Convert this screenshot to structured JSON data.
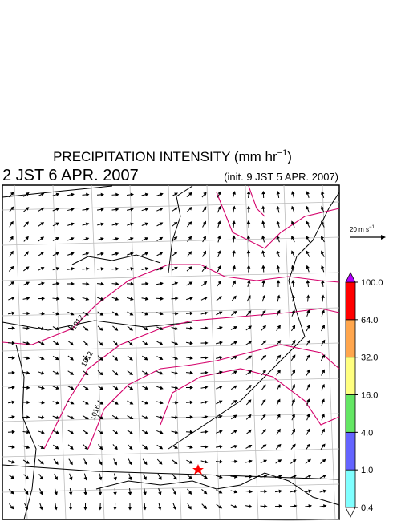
{
  "header": {
    "title": "PRECIPITATION INTENSITY (mm hr",
    "title_sup": "−1",
    "title_end": ")",
    "valid_time": "2 JST 6 APR. 2007",
    "init_time": "(init. 9 JST 5 APR. 2007)"
  },
  "wind_scale": {
    "label": "20 m s",
    "label_sup": "−1"
  },
  "contour_labels": [
    "1012",
    "1012",
    "1016"
  ],
  "colorbar": {
    "levels": [
      {
        "value": 0.4,
        "label": "0.4"
      },
      {
        "value": 1,
        "label": "1.0"
      },
      {
        "value": 4,
        "label": "4.0"
      },
      {
        "value": 16,
        "label": "16.0"
      },
      {
        "value": 32,
        "label": "32.0"
      },
      {
        "value": 64,
        "label": "64.0"
      },
      {
        "value": 100,
        "label": "100.0"
      }
    ],
    "colors": [
      "#80ffff",
      "#6464ff",
      "#64e664",
      "#ffff80",
      "#ffa64d",
      "#ff0000"
    ],
    "under_color": "#ffffff",
    "over_color": "#b400ff"
  }
}
